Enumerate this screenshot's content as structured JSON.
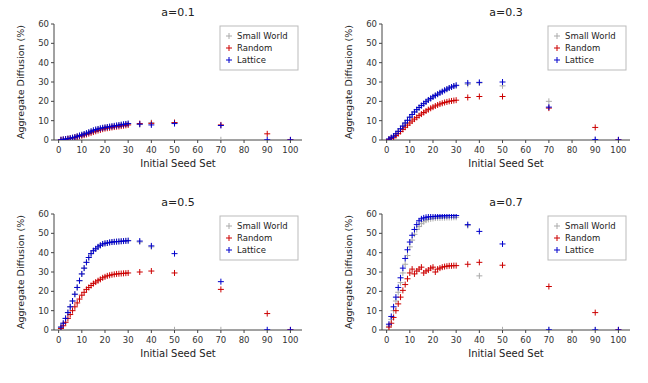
{
  "chart_data": [
    {
      "type": "scatter",
      "title": "a=0.1",
      "x_label": "Initial Seed Set",
      "y_label": "Aggregate Diffusion (%)",
      "xlim": [
        -2,
        105
      ],
      "ylim": [
        0,
        60
      ],
      "xticks": [
        0,
        10,
        20,
        30,
        40,
        50,
        60,
        70,
        80,
        90,
        100
      ],
      "yticks": [
        0,
        10,
        20,
        30,
        40,
        50,
        60
      ],
      "legend": "upper right",
      "marker": "plus",
      "series": [
        {
          "name": "Small World",
          "color": "#aaaaaa",
          "x": [
            1,
            2,
            3,
            4,
            5,
            6,
            7,
            8,
            9,
            10,
            11,
            12,
            13,
            14,
            15,
            16,
            17,
            18,
            19,
            20,
            21,
            22,
            23,
            24,
            25,
            26,
            27,
            28,
            29,
            30,
            35,
            40,
            50,
            70
          ],
          "values": [
            0.1,
            0.3,
            0.5,
            0.7,
            0.9,
            1.2,
            1.5,
            1.9,
            2.3,
            2.7,
            3.1,
            3.5,
            4.0,
            4.5,
            5.0,
            5.4,
            5.7,
            6.0,
            6.3,
            6.5,
            6.7,
            6.9,
            7.1,
            7.3,
            7.5,
            7.7,
            7.9,
            8.1,
            8.3,
            8.4,
            8.0,
            9.0,
            9.0,
            0.1
          ]
        },
        {
          "name": "Random",
          "color": "#cc0000",
          "x": [
            1,
            2,
            3,
            4,
            5,
            6,
            7,
            8,
            9,
            10,
            11,
            12,
            13,
            14,
            15,
            16,
            17,
            18,
            19,
            20,
            21,
            22,
            23,
            24,
            25,
            26,
            27,
            28,
            29,
            30,
            35,
            40,
            50,
            70,
            90,
            100
          ],
          "values": [
            0.1,
            0.2,
            0.4,
            0.6,
            0.8,
            1.0,
            1.3,
            1.6,
            1.9,
            2.2,
            2.5,
            2.9,
            3.3,
            3.7,
            4.1,
            4.5,
            4.9,
            5.2,
            5.6,
            5.9,
            6.1,
            6.3,
            6.5,
            6.7,
            6.9,
            7.0,
            7.2,
            7.4,
            7.6,
            7.8,
            8.5,
            8.6,
            9.0,
            7.8,
            3.2,
            0.05
          ]
        },
        {
          "name": "Lattice",
          "color": "#0000cc",
          "x": [
            1,
            2,
            3,
            4,
            5,
            6,
            7,
            8,
            9,
            10,
            11,
            12,
            13,
            14,
            15,
            16,
            17,
            18,
            19,
            20,
            21,
            22,
            23,
            24,
            25,
            26,
            27,
            28,
            29,
            30,
            35,
            40,
            50,
            70,
            90,
            100
          ],
          "values": [
            0.1,
            0.3,
            0.5,
            0.7,
            0.9,
            1.2,
            1.5,
            1.9,
            2.3,
            2.7,
            3.1,
            3.5,
            4.0,
            4.5,
            5.0,
            5.4,
            5.7,
            6.0,
            6.3,
            6.5,
            6.7,
            6.9,
            7.1,
            7.3,
            7.5,
            7.7,
            7.9,
            8.1,
            8.3,
            8.5,
            8.2,
            7.8,
            8.5,
            7.5,
            0.1,
            0.05
          ]
        }
      ]
    },
    {
      "type": "scatter",
      "title": "a=0.3",
      "x_label": "Initial Seed Set",
      "y_label": "Aggregate Diffusion (%)",
      "xlim": [
        -2,
        105
      ],
      "ylim": [
        0,
        60
      ],
      "xticks": [
        0,
        10,
        20,
        30,
        40,
        50,
        60,
        70,
        80,
        90,
        100
      ],
      "yticks": [
        0,
        10,
        20,
        30,
        40,
        50,
        60
      ],
      "legend": "upper right",
      "marker": "plus",
      "series": [
        {
          "name": "Small World",
          "color": "#aaaaaa",
          "x": [
            1,
            2,
            3,
            4,
            5,
            6,
            7,
            8,
            9,
            10,
            11,
            12,
            13,
            14,
            15,
            16,
            17,
            18,
            19,
            20,
            21,
            22,
            23,
            24,
            25,
            26,
            27,
            28,
            29,
            30,
            35,
            40,
            50,
            70,
            90,
            100
          ],
          "values": [
            0.5,
            1.2,
            2.0,
            3.2,
            4.5,
            5.8,
            7.2,
            8.8,
            10.2,
            11.8,
            13.2,
            14.5,
            15.7,
            16.8,
            17.8,
            18.8,
            19.8,
            20.7,
            21.5,
            22.3,
            23.0,
            23.7,
            24.4,
            25.0,
            25.7,
            26.3,
            26.9,
            27.4,
            27.9,
            28.1,
            28.8,
            29.5,
            28.0,
            20.0,
            0.1,
            0.05
          ]
        },
        {
          "name": "Random",
          "color": "#cc0000",
          "x": [
            1,
            2,
            3,
            4,
            5,
            6,
            7,
            8,
            9,
            10,
            11,
            12,
            13,
            14,
            15,
            16,
            17,
            18,
            19,
            20,
            21,
            22,
            23,
            24,
            25,
            26,
            27,
            28,
            29,
            30,
            35,
            40,
            50,
            70,
            90,
            100
          ],
          "values": [
            0.3,
            0.8,
            1.4,
            2.3,
            3.3,
            4.4,
            5.5,
            6.6,
            7.7,
            8.8,
            9.8,
            10.8,
            11.7,
            12.6,
            13.4,
            14.2,
            15.0,
            15.7,
            16.4,
            17.0,
            17.6,
            18.1,
            18.6,
            19.0,
            19.4,
            19.7,
            20.0,
            20.2,
            20.4,
            20.6,
            22.0,
            22.5,
            22.5,
            16.5,
            6.5,
            0.05
          ]
        },
        {
          "name": "Lattice",
          "color": "#0000cc",
          "x": [
            1,
            2,
            3,
            4,
            5,
            6,
            7,
            8,
            9,
            10,
            11,
            12,
            13,
            14,
            15,
            16,
            17,
            18,
            19,
            20,
            21,
            22,
            23,
            24,
            25,
            26,
            27,
            28,
            29,
            30,
            35,
            40,
            50,
            70,
            90,
            100
          ],
          "values": [
            0.5,
            1.2,
            2.0,
            3.2,
            4.5,
            5.8,
            7.2,
            8.8,
            10.2,
            11.8,
            13.2,
            14.5,
            15.7,
            16.8,
            17.8,
            18.8,
            19.8,
            20.7,
            21.5,
            22.3,
            23.0,
            23.7,
            24.4,
            25.0,
            25.7,
            26.3,
            26.9,
            27.4,
            27.9,
            28.3,
            29.5,
            29.8,
            30.0,
            17.0,
            0.2,
            0.05
          ]
        }
      ]
    },
    {
      "type": "scatter",
      "title": "a=0.5",
      "x_label": "Initial Seed Set",
      "y_label": "Aggregate Diffusion (%)",
      "xlim": [
        -2,
        105
      ],
      "ylim": [
        0,
        60
      ],
      "xticks": [
        0,
        10,
        20,
        30,
        40,
        50,
        60,
        70,
        80,
        90,
        100
      ],
      "yticks": [
        0,
        10,
        20,
        30,
        40,
        50,
        60
      ],
      "legend": "upper right",
      "marker": "plus",
      "series": [
        {
          "name": "Small World",
          "color": "#aaaaaa",
          "x": [
            1,
            2,
            3,
            4,
            5,
            6,
            7,
            8,
            9,
            10,
            11,
            12,
            13,
            14,
            15,
            16,
            17,
            18,
            19,
            20,
            21,
            22,
            23,
            24,
            25,
            26,
            27,
            28,
            29,
            30,
            35,
            40,
            50,
            70
          ],
          "values": [
            1.5,
            3.5,
            6.0,
            9.0,
            12.0,
            15.0,
            18.5,
            22.0,
            25.5,
            29.0,
            32.0,
            35.0,
            37.5,
            39.5,
            41.0,
            42.0,
            43.0,
            43.8,
            44.5,
            44.8,
            45.0,
            45.3,
            45.5,
            45.6,
            45.7,
            45.8,
            45.9,
            46.0,
            46.1,
            46.2,
            45.5,
            43.0,
            0.1,
            0.1
          ]
        },
        {
          "name": "Random",
          "color": "#cc0000",
          "x": [
            1,
            2,
            3,
            4,
            5,
            6,
            7,
            8,
            9,
            10,
            11,
            12,
            13,
            14,
            15,
            16,
            17,
            18,
            19,
            20,
            21,
            22,
            23,
            24,
            25,
            26,
            27,
            28,
            29,
            30,
            35,
            40,
            50,
            70,
            90,
            100
          ],
          "values": [
            0.8,
            2.2,
            4.0,
            6.0,
            8.0,
            10.0,
            12.0,
            14.0,
            16.0,
            18.0,
            19.5,
            21.0,
            22.0,
            23.0,
            24.0,
            24.8,
            25.5,
            26.2,
            27.0,
            27.5,
            28.0,
            28.3,
            28.6,
            28.8,
            29.0,
            29.1,
            29.2,
            29.3,
            29.4,
            29.5,
            30.0,
            30.5,
            29.5,
            21.0,
            8.5,
            0.05
          ]
        },
        {
          "name": "Lattice",
          "color": "#0000cc",
          "x": [
            1,
            2,
            3,
            4,
            5,
            6,
            7,
            8,
            9,
            10,
            11,
            12,
            13,
            14,
            15,
            16,
            17,
            18,
            19,
            20,
            21,
            22,
            23,
            24,
            25,
            26,
            27,
            28,
            29,
            30,
            35,
            40,
            50,
            70,
            90,
            100
          ],
          "values": [
            1.5,
            3.5,
            6.0,
            9.0,
            12.0,
            15.0,
            18.5,
            22.0,
            25.5,
            29.0,
            32.0,
            35.0,
            37.5,
            39.5,
            41.0,
            42.0,
            43.0,
            43.8,
            44.5,
            44.8,
            45.0,
            45.3,
            45.5,
            45.6,
            45.7,
            45.8,
            45.9,
            46.0,
            46.1,
            46.2,
            46.0,
            43.5,
            39.5,
            25.0,
            0.1,
            0.05
          ]
        }
      ]
    },
    {
      "type": "scatter",
      "title": "a=0.7",
      "x_label": "Initial Seed Set",
      "y_label": "Aggregate Diffusion (%)",
      "xlim": [
        -2,
        105
      ],
      "ylim": [
        0,
        60
      ],
      "xticks": [
        0,
        10,
        20,
        30,
        40,
        50,
        60,
        70,
        80,
        90,
        100
      ],
      "yticks": [
        0,
        10,
        20,
        30,
        40,
        50,
        60
      ],
      "legend": "upper right",
      "marker": "plus",
      "series": [
        {
          "name": "Small World",
          "color": "#aaaaaa",
          "x": [
            1,
            2,
            3,
            4,
            5,
            6,
            7,
            8,
            9,
            10,
            11,
            12,
            13,
            14,
            15,
            16,
            17,
            18,
            19,
            20,
            21,
            22,
            23,
            24,
            25,
            26,
            27,
            28,
            29,
            30,
            35,
            40,
            50,
            70,
            90,
            100
          ],
          "values": [
            2.0,
            5.5,
            10.0,
            15.0,
            19.5,
            24.5,
            29.5,
            34.0,
            38.5,
            43.0,
            46.5,
            49.5,
            52.0,
            53.5,
            55.0,
            56.0,
            56.8,
            57.2,
            57.5,
            57.7,
            57.9,
            58.0,
            58.0,
            58.1,
            58.1,
            58.2,
            58.2,
            58.2,
            58.3,
            58.3,
            54.0,
            28.0,
            0.1,
            0.05,
            0.05,
            0.05
          ]
        },
        {
          "name": "Random",
          "color": "#cc0000",
          "x": [
            1,
            2,
            3,
            4,
            5,
            6,
            7,
            8,
            9,
            10,
            11,
            12,
            13,
            14,
            15,
            16,
            17,
            18,
            19,
            20,
            21,
            22,
            23,
            24,
            25,
            26,
            27,
            28,
            29,
            30,
            35,
            40,
            50,
            70,
            90,
            100
          ],
          "values": [
            1.5,
            3.5,
            6.5,
            10.0,
            13.5,
            17.0,
            20.5,
            23.5,
            26.5,
            29.5,
            31.5,
            29.0,
            30.5,
            31.5,
            32.5,
            29.5,
            30.5,
            31.0,
            32.0,
            32.5,
            30.0,
            31.5,
            32.0,
            32.5,
            32.8,
            33.0,
            33.2,
            33.2,
            33.3,
            33.3,
            34.0,
            35.0,
            33.5,
            22.5,
            9.0,
            0.05
          ]
        },
        {
          "name": "Lattice",
          "color": "#0000cc",
          "x": [
            1,
            2,
            3,
            4,
            5,
            6,
            7,
            8,
            9,
            10,
            11,
            12,
            13,
            14,
            15,
            16,
            17,
            18,
            19,
            20,
            21,
            22,
            23,
            24,
            25,
            26,
            27,
            28,
            29,
            30,
            35,
            40,
            50,
            70,
            90,
            100
          ],
          "values": [
            3.0,
            7.0,
            12.0,
            17.0,
            22.0,
            27.0,
            32.0,
            37.0,
            41.5,
            45.5,
            49.0,
            52.0,
            54.5,
            56.5,
            57.5,
            58.0,
            58.3,
            58.5,
            58.6,
            58.7,
            58.8,
            58.9,
            59.0,
            59.0,
            59.1,
            59.1,
            59.2,
            59.2,
            59.2,
            59.2,
            54.5,
            51.0,
            44.5,
            0.1,
            0.05,
            0.05
          ]
        }
      ]
    }
  ]
}
